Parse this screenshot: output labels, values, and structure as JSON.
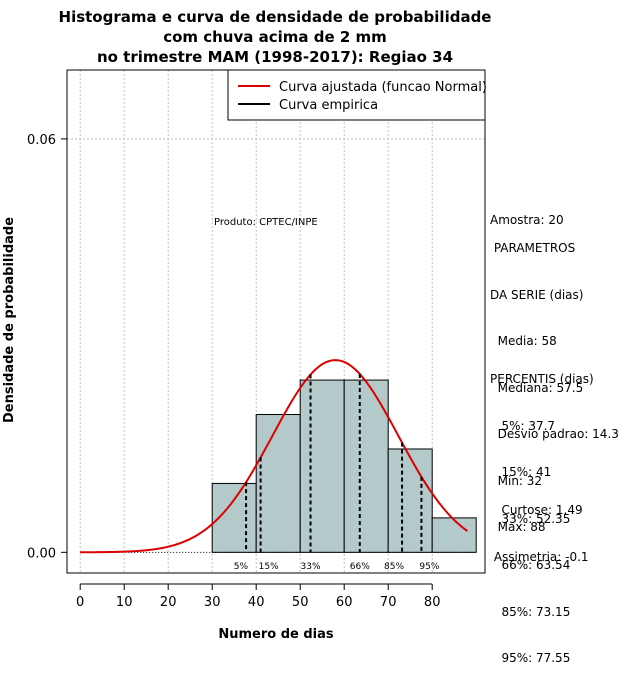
{
  "chart_data": {
    "type": "bar",
    "title": [
      "Histograma e curva de densidade de probabilidade",
      "com chuva acima de 2 mm",
      "no trimestre MAM (1998-2017): Regiao 34"
    ],
    "xlabel": "Numero de dias",
    "ylabel": "Densidade de probabilidade",
    "xlim": [
      -3,
      92
    ],
    "ylim": [
      -0.003,
      0.07
    ],
    "x_ticks": [
      0,
      10,
      20,
      30,
      40,
      50,
      60,
      70,
      80
    ],
    "x_tick_labels": [
      "0",
      "10",
      "20",
      "30",
      "40",
      "50",
      "60",
      "70",
      "80"
    ],
    "y_ticks": [
      0.0,
      0.06
    ],
    "y_tick_labels": [
      "0.00",
      "0.06"
    ],
    "grid": true,
    "product_label": "Produto: CPTEC/INPE",
    "histogram": {
      "bins": [
        [
          30,
          40
        ],
        [
          40,
          50
        ],
        [
          50,
          60
        ],
        [
          60,
          70
        ],
        [
          70,
          80
        ],
        [
          80,
          90
        ]
      ],
      "density": [
        0.01,
        0.02,
        0.025,
        0.025,
        0.015,
        0.005
      ],
      "fill": "#b4c9c9"
    },
    "normal_curve": {
      "mean": 58,
      "sd": 14.3,
      "x_start": 0,
      "x_end": 88,
      "color": "#dd0000"
    },
    "percentile_lines": [
      {
        "label": "5%",
        "x": 37.7
      },
      {
        "label": "15%",
        "x": 41
      },
      {
        "label": "33%",
        "x": 52.35
      },
      {
        "label": "66%",
        "x": 63.54
      },
      {
        "label": "85%",
        "x": 73.15
      },
      {
        "label": "95%",
        "x": 77.55
      }
    ],
    "legend": {
      "position": "top-right",
      "entries": [
        {
          "label": "Curva ajustada (funcao Normal)",
          "color": "#dd0000"
        },
        {
          "label": "Curva empirica",
          "color": "#000000"
        }
      ]
    }
  },
  "stats": {
    "amostra": "Amostra: 20",
    "parametros_title": " PARAMETROS",
    "da_serie": "DA SERIE (dias)",
    "media": "  Media: 58",
    "mediana": "  Mediana: 57.5",
    "desvio": "  Desvio padrao: 14.3",
    "min": "  Min: 32",
    "max": "  Max: 88",
    "percentis_title": "PERCENTIS (dias)",
    "p5": "   5%: 37.7",
    "p15": "   15%: 41",
    "p33": "   33%: 52.35",
    "p66": "   66%: 63.54",
    "p85": "   85%: 73.15",
    "p95": "   95%: 77.55",
    "curtose": "   Curtose: 1.49",
    "assimetria": " Assimetria: -0.1"
  }
}
